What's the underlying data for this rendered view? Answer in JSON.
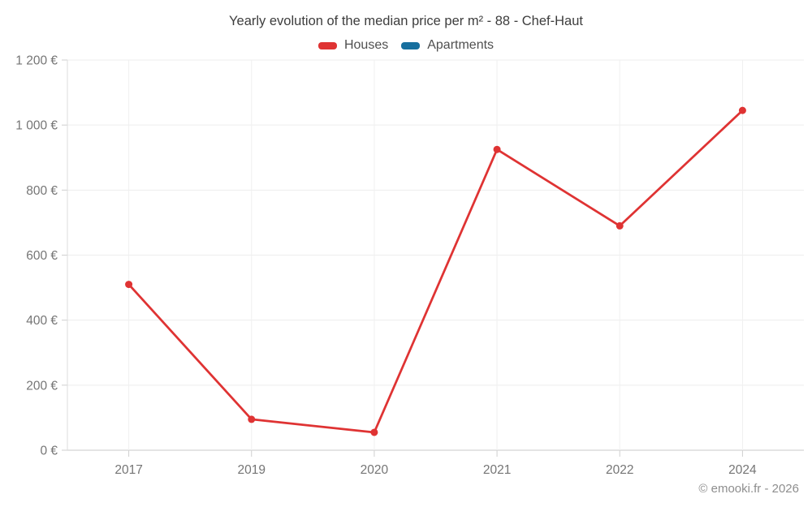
{
  "chart_data": {
    "type": "line",
    "title": "Yearly evolution of the median price per m² - 88 - Chef-Haut",
    "categories": [
      "2017",
      "2019",
      "2020",
      "2021",
      "2022",
      "2024"
    ],
    "series": [
      {
        "name": "Houses",
        "color": "#df3333",
        "values": [
          510,
          95,
          55,
          925,
          690,
          1045
        ]
      },
      {
        "name": "Apartments",
        "color": "#176f9e",
        "values": [
          null,
          null,
          null,
          null,
          null,
          null
        ]
      }
    ],
    "xlabel": "",
    "ylabel": "",
    "ylim": [
      0,
      1200
    ],
    "ytick_step": 200,
    "y_unit": "€",
    "y_tick_format": "space-thousands",
    "grid": true,
    "legend_position": "top",
    "marker_radius": 4.5,
    "line_width": 2.75,
    "colors": {
      "grid_line": "#ededed",
      "axis_line": "#c9c9c9",
      "tick_mark": "#cfcfcf",
      "tick_text": "#757575",
      "title_text": "#3d3d3d",
      "background": "#ffffff"
    }
  },
  "footer": {
    "credit": "© emooki.fr - 2026"
  }
}
